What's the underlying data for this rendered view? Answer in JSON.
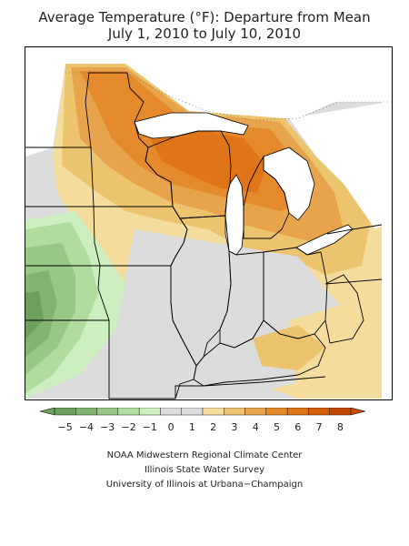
{
  "title": {
    "line1": "Average Temperature (°F): Departure from Mean",
    "line2": "July 1, 2010 to July 10, 2010"
  },
  "legend": {
    "tick_labels": [
      "−5",
      "−4",
      "−3",
      "−2",
      "−1",
      "0",
      "1",
      "2",
      "3",
      "4",
      "5",
      "6",
      "7",
      "8"
    ],
    "bin_colors": [
      "#6f9f5c",
      "#83b46f",
      "#99c885",
      "#b1dc9e",
      "#cdeec0",
      "#dcdcdc",
      "#dcdcdc",
      "#f4dc9c",
      "#ecc46e",
      "#e8a44c",
      "#e48a2c",
      "#e07418",
      "#d65e0a",
      "#c24a04"
    ],
    "arrow_left_color": "#6f9f5c",
    "arrow_right_color": "#c24a04"
  },
  "credits": {
    "line1": "NOAA Midwestern Regional Climate Center",
    "line2": "Illinois State Water Survey",
    "line3": "University of Illinois at Urbana−Champaign"
  }
}
